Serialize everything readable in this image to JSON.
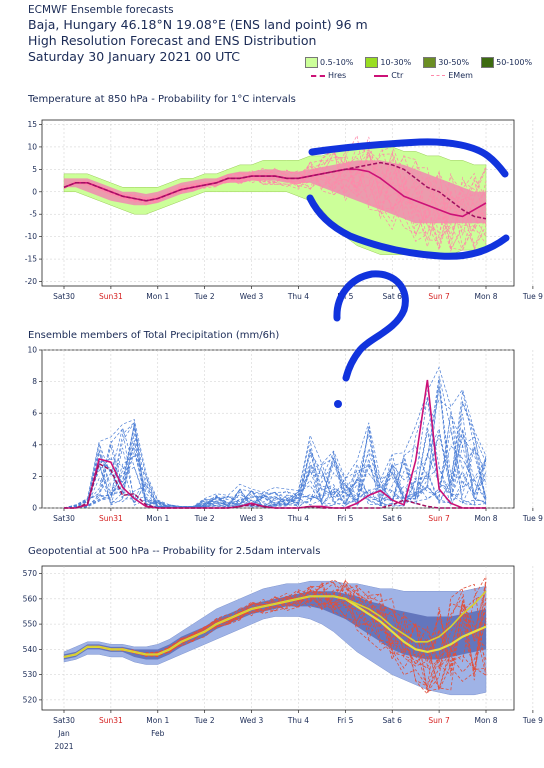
{
  "header": {
    "org": "ECMWF Ensemble forecasts",
    "location": "Baja, Hungary 46.18°N 19.08°E (ENS land point) 96 m",
    "subtitle": "High Resolution Forecast and ENS Distribution",
    "date": "Saturday 30 January 2021 00 UTC"
  },
  "legend": {
    "prob_classes": [
      {
        "label": "0.5-10%",
        "color": "#ccff99"
      },
      {
        "label": "10-30%",
        "color": "#99dd22"
      },
      {
        "label": "30-50%",
        "color": "#6b8e23"
      },
      {
        "label": "50-100%",
        "color": "#3d6b10"
      }
    ],
    "lines": [
      {
        "label": "Hres",
        "color": "#cc1177",
        "style": "dashed"
      },
      {
        "label": "Ctr",
        "color": "#cc1177",
        "style": "solid"
      },
      {
        "label": "EMem",
        "color": "#ff88aa",
        "style": "dashed"
      }
    ]
  },
  "days": [
    {
      "label": "Sat30",
      "color": "#1a2a55",
      "sub": "Jan"
    },
    {
      "label": "Sun31",
      "color": "#d41e1e",
      "sub": ""
    },
    {
      "label": "Mon 1",
      "color": "#1a2a55",
      "sub": "Feb"
    },
    {
      "label": "Tue 2",
      "color": "#1a2a55",
      "sub": ""
    },
    {
      "label": "Wed 3",
      "color": "#1a2a55",
      "sub": ""
    },
    {
      "label": "Thu 4",
      "color": "#1a2a55",
      "sub": ""
    },
    {
      "label": "Fri 5",
      "color": "#1a2a55",
      "sub": ""
    },
    {
      "label": "Sat 6",
      "color": "#1a2a55",
      "sub": ""
    },
    {
      "label": "Sun 7",
      "color": "#d41e1e",
      "sub": ""
    },
    {
      "label": "Mon 8",
      "color": "#1a2a55",
      "sub": ""
    },
    {
      "label": "Tue 9",
      "color": "#1a2a55",
      "sub": ""
    }
  ],
  "year_label": "2021",
  "chart_data": [
    {
      "type": "area",
      "title": "Temperature at 850 hPa - Probability for 1°C intervals",
      "ylim": [
        -21,
        16
      ],
      "yticks": [
        -20,
        -15,
        -10,
        -5,
        0,
        5,
        10,
        15
      ],
      "x_days": [
        0,
        0.25,
        0.5,
        0.75,
        1,
        1.25,
        1.5,
        1.75,
        2,
        2.25,
        2.5,
        2.75,
        3,
        3.25,
        3.5,
        3.75,
        4,
        4.25,
        4.5,
        4.75,
        5,
        5.25,
        5.5,
        5.75,
        6,
        6.25,
        6.5,
        6.75,
        7,
        7.25,
        7.5,
        7.75,
        8,
        8.25,
        8.5,
        8.75,
        9
      ],
      "hres": [
        1,
        2,
        2,
        1,
        0,
        -1,
        -1.5,
        -2,
        -1.5,
        -0.5,
        0.5,
        1,
        1.5,
        2,
        3,
        3,
        3.5,
        3.5,
        3.5,
        3,
        3,
        3.5,
        4,
        4.5,
        5,
        5.5,
        6,
        6.5,
        6,
        5,
        3,
        1,
        0,
        -2,
        -4,
        -5.5,
        -6
      ],
      "ctr": [
        1,
        2,
        2,
        1,
        0,
        -1,
        -1.5,
        -2,
        -1.5,
        -0.5,
        0.5,
        1,
        1.5,
        2,
        3,
        3,
        3.5,
        3.5,
        3.5,
        3,
        3,
        3.5,
        4,
        4.5,
        5,
        5,
        4.5,
        3,
        1,
        -1,
        -2,
        -3,
        -4,
        -5,
        -5.5,
        -4,
        -2.5
      ],
      "band_outer_low": [
        0,
        0,
        -1,
        -2,
        -3,
        -4,
        -5,
        -5,
        -4,
        -3,
        -2,
        -1,
        0,
        0,
        0,
        0,
        0,
        0,
        0,
        0,
        -1,
        -2,
        -4,
        -7,
        -10,
        -12,
        -13,
        -14,
        -14,
        -14,
        -14,
        -14,
        -14,
        -14,
        -13,
        -13,
        -13
      ],
      "band_outer_high": [
        4,
        4,
        4,
        3,
        2,
        1,
        1,
        1,
        1,
        2,
        3,
        3,
        4,
        4,
        5,
        6,
        6,
        7,
        7,
        7,
        7,
        8,
        8,
        9,
        10,
        10,
        10,
        10,
        10,
        9,
        9,
        8,
        8,
        7,
        7,
        6,
        6
      ],
      "band_core_low": [
        1,
        1,
        0,
        -1,
        -2,
        -2.5,
        -3,
        -3,
        -2.5,
        -1.5,
        -0.5,
        0,
        1,
        1.5,
        2,
        2,
        2.5,
        2.5,
        2.5,
        2,
        2,
        2,
        1,
        0,
        -1,
        -2,
        -3,
        -4,
        -5,
        -6,
        -7,
        -7,
        -7,
        -7,
        -7,
        -7,
        -7
      ],
      "band_core_high": [
        3,
        3,
        3,
        2,
        1,
        0,
        0,
        -0.5,
        0,
        1,
        2,
        2.5,
        3,
        3,
        4,
        4.5,
        4.5,
        5,
        5,
        4.5,
        4.5,
        5,
        5.5,
        6,
        6.5,
        7,
        7,
        7,
        6.5,
        6,
        5,
        4,
        3,
        2,
        1,
        0,
        0
      ]
    },
    {
      "type": "line",
      "title": "Ensemble members of Total Precipitation (mm/6h)",
      "ylim": [
        0,
        10
      ],
      "yticks": [
        0,
        2,
        4,
        6,
        8,
        10
      ],
      "x_days": [
        0,
        0.25,
        0.5,
        0.75,
        1,
        1.25,
        1.5,
        1.75,
        2,
        2.25,
        2.5,
        2.75,
        3,
        3.25,
        3.5,
        3.75,
        4,
        4.25,
        4.5,
        4.75,
        5,
        5.25,
        5.5,
        5.75,
        6,
        6.25,
        6.5,
        6.75,
        7,
        7.25,
        7.5,
        7.75,
        8,
        8.25,
        8.5,
        8.75,
        9
      ],
      "hres": [
        0,
        0,
        0.3,
        2.8,
        2.4,
        0.8,
        0.9,
        0.2,
        0,
        0,
        0,
        0,
        0,
        0,
        0,
        0.1,
        0.2,
        0.1,
        0,
        0,
        0,
        0.1,
        0,
        0,
        0,
        0,
        0,
        0,
        0.2,
        0.5,
        0.3,
        0.1,
        0,
        0,
        0,
        0,
        0
      ],
      "ctr": [
        0,
        0,
        0.2,
        3.1,
        2.9,
        1.3,
        0.6,
        0.1,
        0,
        0,
        0,
        0,
        0,
        0,
        0,
        0.1,
        0.3,
        0.1,
        0,
        0,
        0,
        0.1,
        0.1,
        0,
        0,
        0.3,
        0.8,
        1.1,
        0.5,
        0.2,
        3,
        8.1,
        1.2,
        0.3,
        0,
        0,
        0
      ],
      "members_max": [
        0,
        0.2,
        0.6,
        4.2,
        4.5,
        5.3,
        5.6,
        2.2,
        0.5,
        0.2,
        0.1,
        0.1,
        0.6,
        0.9,
        0.8,
        1.5,
        1.2,
        1.0,
        1.3,
        1.2,
        1.1,
        4.6,
        2.8,
        3.6,
        1.9,
        3.0,
        5.4,
        1.8,
        3.4,
        3.5,
        5.2,
        7.4,
        8.9,
        6.4,
        7.5,
        4.9,
        3.3
      ]
    },
    {
      "type": "area",
      "title": "Geopotential at 500 hPa -- Probability for 2.5dam intervals",
      "ylim": [
        516,
        573
      ],
      "yticks": [
        520,
        530,
        540,
        550,
        560,
        570
      ],
      "x_days": [
        0,
        0.25,
        0.5,
        0.75,
        1,
        1.25,
        1.5,
        1.75,
        2,
        2.25,
        2.5,
        2.75,
        3,
        3.25,
        3.5,
        3.75,
        4,
        4.25,
        4.5,
        4.75,
        5,
        5.25,
        5.5,
        5.75,
        6,
        6.25,
        6.5,
        6.75,
        7,
        7.25,
        7.5,
        7.75,
        8,
        8.25,
        8.5,
        8.75,
        9
      ],
      "hres": [
        537,
        538,
        541,
        541,
        540,
        540,
        539,
        538,
        538,
        540,
        543,
        545,
        547,
        550,
        552,
        554,
        556,
        557,
        558,
        559,
        560,
        561,
        561,
        561,
        560,
        558,
        556,
        553,
        549,
        546,
        543,
        543,
        545,
        549,
        554,
        558,
        563
      ],
      "ctr": [
        537,
        538,
        541,
        541,
        540,
        540,
        539,
        538,
        538,
        540,
        543,
        545,
        547,
        550,
        552,
        554,
        556,
        557,
        558,
        559,
        560,
        561,
        561,
        561,
        560,
        557,
        554,
        551,
        547,
        543,
        540,
        539,
        540,
        542,
        545,
        547,
        549
      ],
      "band_low": [
        535,
        536,
        538,
        538,
        537,
        537,
        535,
        534,
        534,
        536,
        538,
        540,
        542,
        544,
        546,
        548,
        550,
        552,
        553,
        553,
        553,
        552,
        550,
        547,
        543,
        539,
        536,
        533,
        530,
        528,
        526,
        524,
        523,
        522,
        522,
        522,
        523
      ],
      "band_high": [
        539,
        541,
        543,
        543,
        542,
        542,
        541,
        541,
        542,
        544,
        547,
        550,
        553,
        556,
        558,
        560,
        562,
        564,
        565,
        566,
        566,
        567,
        567,
        567,
        566,
        566,
        565,
        564,
        564,
        563,
        563,
        563,
        563,
        563,
        563,
        564,
        565
      ],
      "core_low": [
        536,
        537,
        540,
        540,
        539,
        539,
        537,
        536,
        536,
        538,
        541,
        543,
        545,
        548,
        550,
        552,
        554,
        555,
        556,
        557,
        557,
        557,
        556,
        554,
        552,
        549,
        546,
        543,
        540,
        538,
        537,
        536,
        536,
        537,
        538,
        539,
        540
      ],
      "core_high": [
        538,
        539,
        542,
        542,
        541,
        541,
        540,
        540,
        540,
        542,
        545,
        547,
        549,
        552,
        554,
        556,
        558,
        559,
        560,
        561,
        562,
        563,
        563,
        563,
        562,
        561,
        559,
        558,
        556,
        555,
        554,
        553,
        553,
        553,
        554,
        555,
        556
      ]
    }
  ]
}
